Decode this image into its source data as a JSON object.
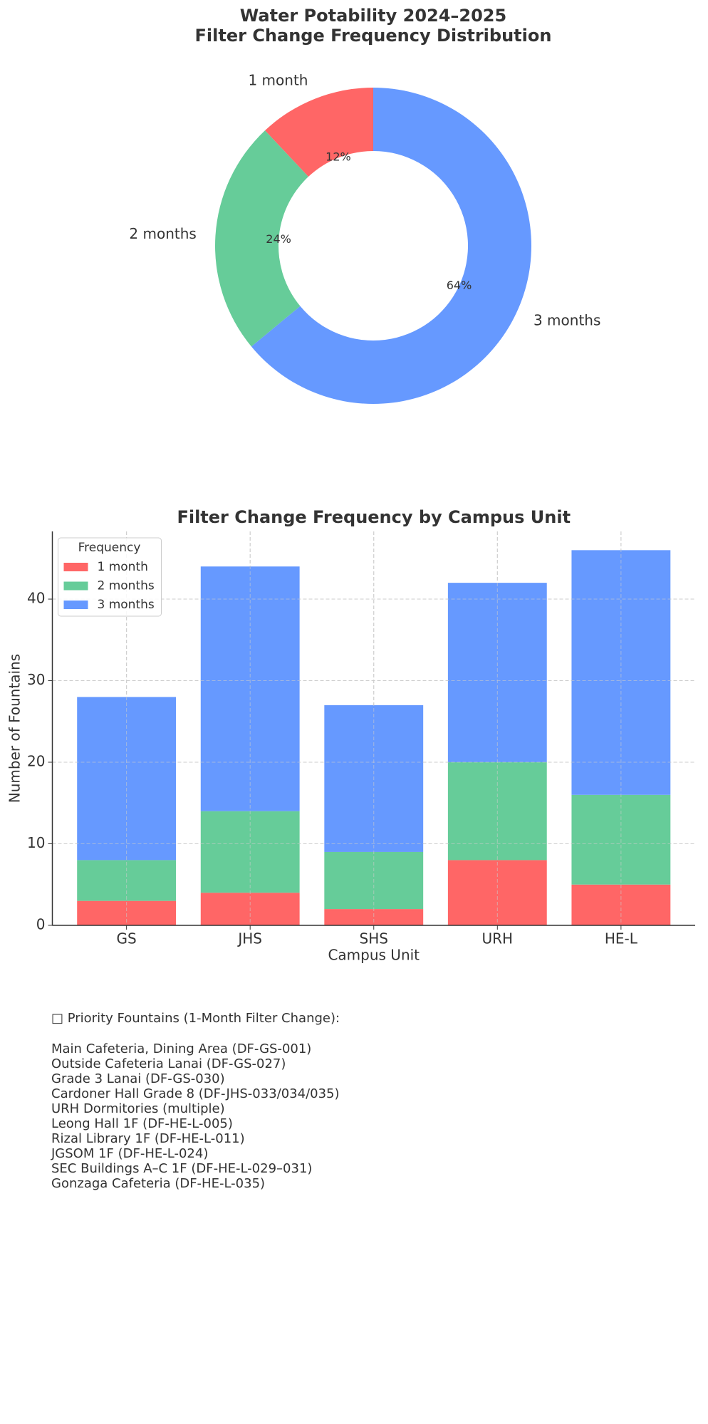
{
  "chart_data": [
    {
      "type": "donut",
      "title": "Water Potability 2024–2025\nFilter Change Frequency Distribution",
      "categories": [
        "1 month",
        "2 months",
        "3 months"
      ],
      "values": [
        12,
        24,
        64
      ],
      "value_labels": [
        "12%",
        "24%",
        "64%"
      ],
      "colors": [
        "#ff6666",
        "#66cc99",
        "#6699ff"
      ]
    },
    {
      "type": "stacked_bar",
      "title": "Filter Change Frequency by Campus Unit",
      "x_label": "Campus Unit",
      "y_label": "Number of Fountains",
      "categories": [
        "GS",
        "JHS",
        "SHS",
        "URH",
        "HE-L"
      ],
      "series": [
        {
          "name": "1 month",
          "color": "#ff6666",
          "values": [
            3,
            4,
            2,
            8,
            5
          ]
        },
        {
          "name": "2 months",
          "color": "#66cc99",
          "values": [
            5,
            10,
            7,
            12,
            11
          ]
        },
        {
          "name": "3 months",
          "color": "#6699ff",
          "values": [
            20,
            30,
            18,
            22,
            30
          ]
        }
      ],
      "ylim": [
        0,
        48.3
      ],
      "yticks": [
        0,
        10,
        20,
        30,
        40
      ],
      "grid": true,
      "legend_title": "Frequency",
      "legend": "upper left"
    }
  ],
  "notes": {
    "heading": "□ Priority Fountains (1-Month Filter Change):",
    "items": [
      "Main Cafeteria, Dining Area (DF-GS-001)",
      "Outside Cafeteria Lanai (DF-GS-027)",
      "Grade 3 Lanai (DF-GS-030)",
      "Cardoner Hall Grade 8 (DF-JHS-033/034/035)",
      "URH Dormitories (multiple)",
      "Leong Hall 1F (DF-HE-L-005)",
      "Rizal Library 1F (DF-HE-L-011)",
      "JGSOM 1F (DF-HE-L-024)",
      "SEC Buildings A–C 1F (DF-HE-L-029–031)",
      "Gonzaga Cafeteria (DF-HE-L-035)"
    ]
  }
}
